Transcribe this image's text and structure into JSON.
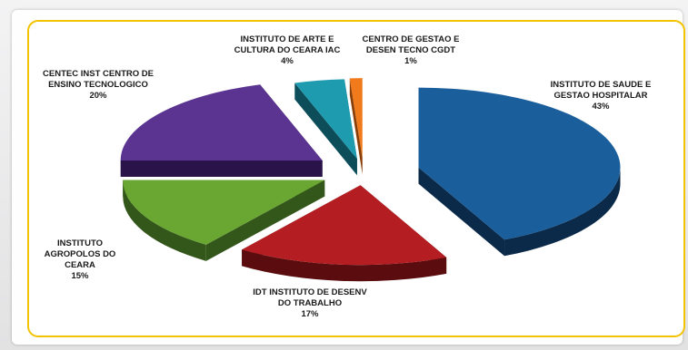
{
  "colors": {
    "frame_border": "#f3c300",
    "background": "#ffffff"
  },
  "chart_data": {
    "type": "pie",
    "title": "",
    "style": "3d-exploded",
    "legend": "none",
    "slices": [
      {
        "label_lines": [
          "INSTITUTO DE SAUDE E",
          "GESTAO HOSPITALAR"
        ],
        "value": 43,
        "value_label": "43%",
        "color": "#1a5f9c",
        "side": "#0b2a4a"
      },
      {
        "label_lines": [
          "IDT INSTITUTO DE DESENV",
          "DO TRABALHO"
        ],
        "value": 17,
        "value_label": "17%",
        "color": "#b41e22",
        "side": "#5a0c0e"
      },
      {
        "label_lines": [
          "INSTITUTO",
          "AGROPOLOS DO",
          "CEARA"
        ],
        "value": 15,
        "value_label": "15%",
        "color": "#6aa632",
        "side": "#33561a"
      },
      {
        "label_lines": [
          "CENTEC INST CENTRO DE",
          "ENSINO TECNOLOGICO"
        ],
        "value": 20,
        "value_label": "20%",
        "color": "#5a3490",
        "side": "#2a1348"
      },
      {
        "label_lines": [
          "INSTITUTO DE ARTE E",
          "CULTURA DO CEARA IAC"
        ],
        "value": 4,
        "value_label": "4%",
        "color": "#1f9bb0",
        "side": "#0c4d59"
      },
      {
        "label_lines": [
          "CENTRO DE GESTAO E",
          "DESEN TECNO CGDT"
        ],
        "value": 1,
        "value_label": "1%",
        "color": "#f07a1c",
        "side": "#8a3f08"
      }
    ]
  }
}
